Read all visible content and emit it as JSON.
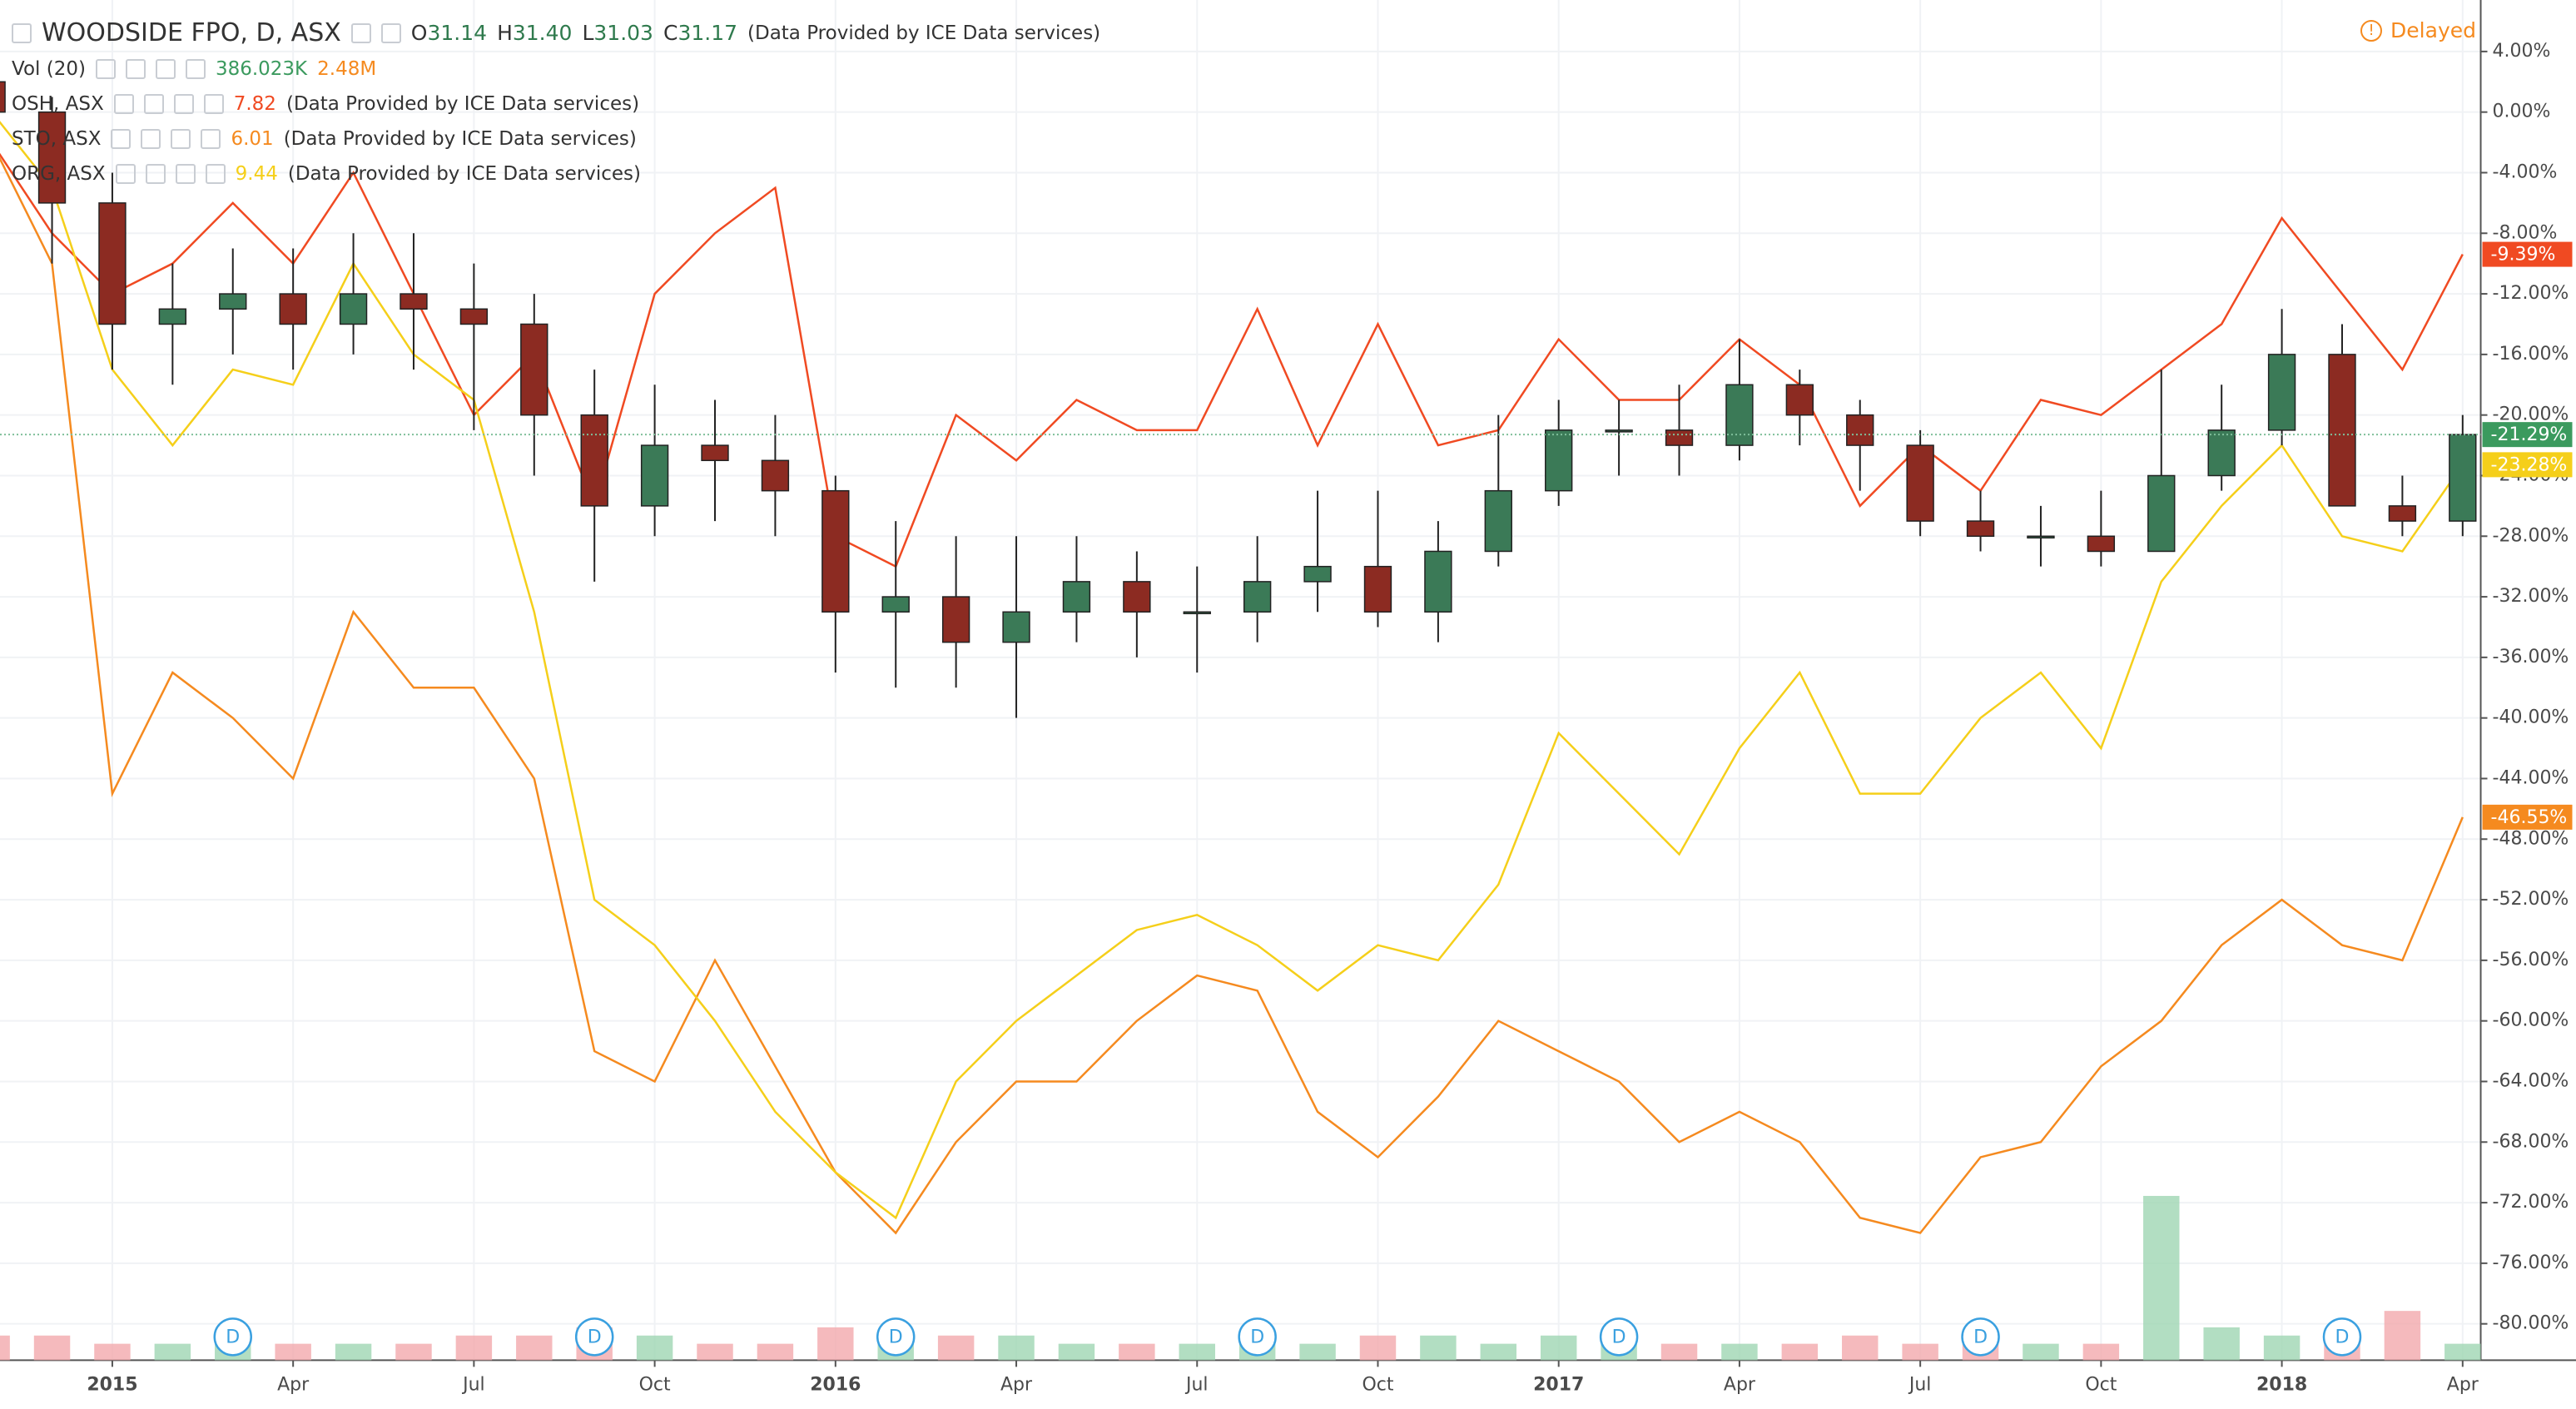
{
  "chart_data": {
    "type": "candlestick",
    "title": "WOODSIDE FPO, D, ASX",
    "ohlc_labels": [
      "O",
      "H",
      "L",
      "C"
    ],
    "ohlc_values": [
      "31.14",
      "31.40",
      "31.03",
      "31.17"
    ],
    "source": "(Data Provided by ICE Data services)",
    "status": "Delayed",
    "volume_title": "Vol (20)",
    "volume_values": [
      "386.023K",
      "2.48M"
    ],
    "x": [
      "2014-11",
      "2014-12",
      "2015-01",
      "2015-02",
      "2015-03",
      "2015-04",
      "2015-05",
      "2015-06",
      "2015-07",
      "2015-08",
      "2015-09",
      "2015-10",
      "2015-11",
      "2015-12",
      "2016-01",
      "2016-02",
      "2016-03",
      "2016-04",
      "2016-05",
      "2016-06",
      "2016-07",
      "2016-08",
      "2016-09",
      "2016-10",
      "2016-11",
      "2016-12",
      "2017-01",
      "2017-02",
      "2017-03",
      "2017-04",
      "2017-05",
      "2017-06",
      "2017-07",
      "2017-08",
      "2017-09",
      "2017-10",
      "2017-11",
      "2017-12",
      "2018-01",
      "2018-02",
      "2018-03",
      "2018-04"
    ],
    "xlim": [
      "2014-11",
      "2018-04"
    ],
    "xticks": [
      {
        "value": "2015-01",
        "label": "2015"
      },
      {
        "value": "2015-04",
        "label": "Apr"
      },
      {
        "value": "2015-07",
        "label": "Jul"
      },
      {
        "value": "2015-10",
        "label": "Oct"
      },
      {
        "value": "2016-01",
        "label": "2016"
      },
      {
        "value": "2016-04",
        "label": "Apr"
      },
      {
        "value": "2016-07",
        "label": "Jul"
      },
      {
        "value": "2016-10",
        "label": "Oct"
      },
      {
        "value": "2017-01",
        "label": "2017"
      },
      {
        "value": "2017-04",
        "label": "Apr"
      },
      {
        "value": "2017-07",
        "label": "Jul"
      },
      {
        "value": "2017-10",
        "label": "Oct"
      },
      {
        "value": "2018-01",
        "label": "2018"
      },
      {
        "value": "2018-04",
        "label": "Apr"
      }
    ],
    "ylim": [
      -82.4,
      7.4
    ],
    "yticks": [
      {
        "value": 4,
        "label": "4.00%"
      },
      {
        "value": 0,
        "label": "0.00%"
      },
      {
        "value": -4,
        "label": "-4.00%"
      },
      {
        "value": -8,
        "label": "-8.00%"
      },
      {
        "value": -12,
        "label": "-12.00%"
      },
      {
        "value": -16,
        "label": "-16.00%"
      },
      {
        "value": -20,
        "label": "-20.00%"
      },
      {
        "value": -24,
        "label": "-24.00%"
      },
      {
        "value": -28,
        "label": "-28.00%"
      },
      {
        "value": -32,
        "label": "-32.00%"
      },
      {
        "value": -36,
        "label": "-36.00%"
      },
      {
        "value": -40,
        "label": "-40.00%"
      },
      {
        "value": -44,
        "label": "-44.00%"
      },
      {
        "value": -48,
        "label": "-48.00%"
      },
      {
        "value": -52,
        "label": "-52.00%"
      },
      {
        "value": -56,
        "label": "-56.00%"
      },
      {
        "value": -60,
        "label": "-60.00%"
      },
      {
        "value": -64,
        "label": "-64.00%"
      },
      {
        "value": -68,
        "label": "-68.00%"
      },
      {
        "value": -72,
        "label": "-72.00%"
      },
      {
        "value": -76,
        "label": "-76.00%"
      },
      {
        "value": -80,
        "label": "-80.00%"
      }
    ],
    "grid": true,
    "up_color": "#3b7a57",
    "down_color": "#8c2b22",
    "candles": {
      "name": "WOODSIDE FPO",
      "open": [
        2,
        0,
        -6,
        -14,
        -13,
        -12,
        -14,
        -12,
        -13,
        -14,
        -20,
        -26,
        -22,
        -23,
        -25,
        -33,
        -32,
        -35,
        -33,
        -31,
        -33,
        -33,
        -31,
        -30,
        -33,
        -29,
        -25,
        -21,
        -21,
        -22,
        -18,
        -20,
        -22,
        -27,
        -28,
        -28,
        -29,
        -24,
        -21,
        -16,
        -26,
        -27
      ],
      "high": [
        4,
        1,
        -4,
        -10,
        -9,
        -9,
        -8,
        -8,
        -10,
        -12,
        -17,
        -18,
        -19,
        -20,
        -24,
        -27,
        -28,
        -28,
        -28,
        -29,
        -30,
        -28,
        -25,
        -25,
        -27,
        -20,
        -19,
        -19,
        -18,
        -15,
        -17,
        -19,
        -21,
        -25,
        -26,
        -25,
        -17,
        -18,
        -13,
        -14,
        -24,
        -20
      ],
      "low": [
        -2,
        -10,
        -17,
        -18,
        -16,
        -17,
        -16,
        -17,
        -21,
        -24,
        -31,
        -28,
        -27,
        -28,
        -37,
        -38,
        -38,
        -40,
        -35,
        -36,
        -37,
        -35,
        -33,
        -34,
        -35,
        -30,
        -26,
        -24,
        -24,
        -23,
        -22,
        -25,
        -28,
        -29,
        -30,
        -30,
        -29,
        -25,
        -22,
        -26,
        -28,
        -28
      ],
      "close": [
        0,
        -6,
        -14,
        -13,
        -12,
        -14,
        -12,
        -13,
        -14,
        -20,
        -26,
        -22,
        -23,
        -25,
        -33,
        -32,
        -35,
        -33,
        -31,
        -33,
        -33,
        -31,
        -30,
        -33,
        -29,
        -25,
        -21,
        -21,
        -22,
        -18,
        -20,
        -22,
        -27,
        -28,
        -28,
        -29,
        -24,
        -21,
        -16,
        -26,
        -27,
        -21.29
      ],
      "last_label": "-21.29%",
      "label_color": "#3b9a5e"
    },
    "volume": [
      3,
      3,
      2,
      2,
      3,
      2,
      2,
      2,
      3,
      3,
      4,
      3,
      2,
      2,
      4,
      3,
      3,
      3,
      2,
      2,
      2,
      2,
      2,
      3,
      3,
      2,
      3,
      2,
      2,
      2,
      2,
      3,
      2,
      2,
      2,
      2,
      20,
      4,
      3,
      3,
      6,
      2
    ],
    "dividends": {
      "label": "D",
      "x": [
        "2015-03",
        "2015-09",
        "2016-02",
        "2016-08",
        "2017-02",
        "2017-08",
        "2018-02"
      ]
    },
    "series": [
      {
        "name": "OSH, ASX",
        "legend_value": "7.82",
        "color": "#f04a22",
        "last_label": "-9.39%",
        "values": [
          -2,
          -8,
          -12,
          -10,
          -6,
          -10,
          -4,
          -12,
          -20,
          -16,
          -26,
          -12,
          -8,
          -5,
          -28,
          -30,
          -20,
          -23,
          -19,
          -21,
          -21,
          -13,
          -22,
          -14,
          -22,
          -21,
          -15,
          -19,
          -19,
          -15,
          -18,
          -26,
          -22,
          -25,
          -19,
          -20,
          -17,
          -14,
          -7,
          -12,
          -17,
          -9.39
        ]
      },
      {
        "name": "STO, ASX",
        "legend_value": "6.01",
        "color": "#f58a1f",
        "last_label": "-46.55%",
        "values": [
          -2,
          -10,
          -45,
          -37,
          -40,
          -44,
          -33,
          -38,
          -38,
          -44,
          -62,
          -64,
          -56,
          -63,
          -70,
          -74,
          -68,
          -64,
          -64,
          -60,
          -57,
          -58,
          -66,
          -69,
          -65,
          -60,
          -62,
          -64,
          -68,
          -66,
          -68,
          -73,
          -74,
          -69,
          -68,
          -63,
          -60,
          -55,
          -52,
          -55,
          -56,
          -46.55
        ]
      },
      {
        "name": "ORG, ASX",
        "legend_value": "9.44",
        "color": "#f5cf1a",
        "last_label": "-23.28%",
        "values": [
          0,
          -5,
          -17,
          -22,
          -17,
          -18,
          -10,
          -16,
          -19,
          -33,
          -52,
          -55,
          -60,
          -66,
          -70,
          -73,
          -64,
          -60,
          -57,
          -54,
          -53,
          -55,
          -58,
          -55,
          -56,
          -51,
          -41,
          -45,
          -49,
          -42,
          -37,
          -45,
          -45,
          -40,
          -37,
          -42,
          -31,
          -26,
          -22,
          -28,
          -29,
          -23.28
        ]
      }
    ]
  }
}
